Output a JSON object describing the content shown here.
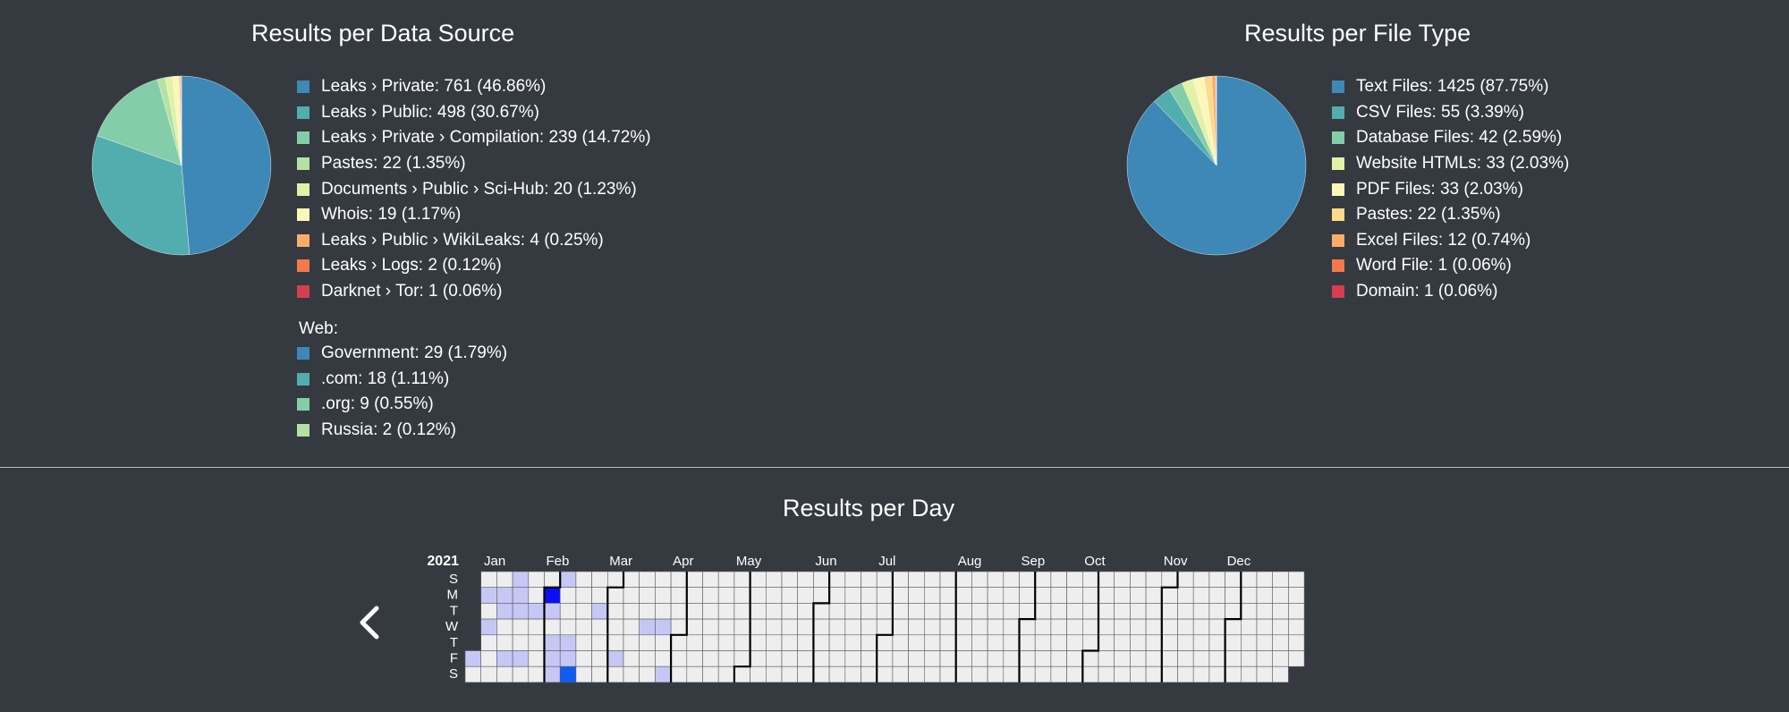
{
  "colors": {
    "background": "#343a40",
    "divider": "#b8bcc0",
    "calendar_empty": "#eeeeee",
    "calendar_light": "#c7c7f5",
    "calendar_mid": "#0e5cf0",
    "calendar_dark": "#0a0ff5"
  },
  "chart_data": [
    {
      "type": "pie",
      "title": "Results per Data Source",
      "legend_position": "right",
      "series": [
        {
          "label": "Leaks › Private",
          "value": 761,
          "percent": 46.86,
          "color": "#3e88b8",
          "legend_text": "Leaks › Private: 761 (46.86%)"
        },
        {
          "label": "Leaks › Public",
          "value": 498,
          "percent": 30.67,
          "color": "#52aeae",
          "legend_text": "Leaks › Public: 498 (30.67%)"
        },
        {
          "label": "Leaks › Private › Compilation",
          "value": 239,
          "percent": 14.72,
          "color": "#84cda9",
          "legend_text": "Leaks › Private › Compilation: 239 (14.72%)"
        },
        {
          "label": "Pastes",
          "value": 22,
          "percent": 1.35,
          "color": "#b4e2a3",
          "legend_text": "Pastes: 22 (1.35%)"
        },
        {
          "label": "Documents › Public › Sci-Hub",
          "value": 20,
          "percent": 1.23,
          "color": "#e2f1a5",
          "legend_text": "Documents › Public › Sci-Hub: 20 (1.23%)"
        },
        {
          "label": "Whois",
          "value": 19,
          "percent": 1.17,
          "color": "#fcf7b8",
          "legend_text": "Whois: 19 (1.17%)"
        },
        {
          "label": "Leaks › Public › WikiLeaks",
          "value": 4,
          "percent": 0.25,
          "color": "#fbad68",
          "legend_text": "Leaks › Public › WikiLeaks: 4 (0.25%)"
        },
        {
          "label": "Leaks › Logs",
          "value": 2,
          "percent": 0.12,
          "color": "#f3794b",
          "legend_text": "Leaks › Logs: 2 (0.12%)"
        },
        {
          "label": "Darknet › Tor",
          "value": 1,
          "percent": 0.06,
          "color": "#d53e4f",
          "legend_text": "Darknet › Tor: 1 (0.06%)"
        }
      ],
      "web_group": {
        "title": "Web:",
        "items": [
          {
            "label": "Government",
            "value": 29,
            "percent": 1.79,
            "color": "#3e88b8",
            "legend_text": "Government: 29 (1.79%)"
          },
          {
            "label": ".com",
            "value": 18,
            "percent": 1.11,
            "color": "#52aeae",
            "legend_text": ".com: 18 (1.11%)"
          },
          {
            "label": ".org",
            "value": 9,
            "percent": 0.55,
            "color": "#84cda9",
            "legend_text": ".org: 9 (0.55%)"
          },
          {
            "label": "Russia",
            "value": 2,
            "percent": 0.12,
            "color": "#b4e2a3",
            "legend_text": "Russia: 2 (0.12%)"
          }
        ]
      }
    },
    {
      "type": "pie",
      "title": "Results per File Type",
      "legend_position": "right",
      "series": [
        {
          "label": "Text Files",
          "value": 1425,
          "percent": 87.75,
          "color": "#3e88b8",
          "legend_text": "Text Files: 1425 (87.75%)"
        },
        {
          "label": "CSV Files",
          "value": 55,
          "percent": 3.39,
          "color": "#52aeae",
          "legend_text": "CSV Files: 55 (3.39%)"
        },
        {
          "label": "Database Files",
          "value": 42,
          "percent": 2.59,
          "color": "#84cda9",
          "legend_text": "Database Files: 42 (2.59%)"
        },
        {
          "label": "Website HTMLs",
          "value": 33,
          "percent": 2.03,
          "color": "#e2f1a5",
          "legend_text": "Website HTMLs: 33 (2.03%)"
        },
        {
          "label": "PDF Files",
          "value": 33,
          "percent": 2.03,
          "color": "#fcf7b8",
          "legend_text": "PDF Files: 33 (2.03%)"
        },
        {
          "label": "Pastes",
          "value": 22,
          "percent": 1.35,
          "color": "#fdd98b",
          "legend_text": "Pastes: 22 (1.35%)"
        },
        {
          "label": "Excel Files",
          "value": 12,
          "percent": 0.74,
          "color": "#fbad68",
          "legend_text": "Excel Files: 12 (0.74%)"
        },
        {
          "label": "Word File",
          "value": 1,
          "percent": 0.06,
          "color": "#f3794b",
          "legend_text": "Word File: 1 (0.06%)"
        },
        {
          "label": "Domain",
          "value": 1,
          "percent": 0.06,
          "color": "#d53e4f",
          "legend_text": "Domain: 1 (0.06%)"
        }
      ]
    },
    {
      "type": "heatmap",
      "title": "Results per Day",
      "year": "2021",
      "months": [
        "Jan",
        "Feb",
        "Mar",
        "Apr",
        "May",
        "Jun",
        "Jul",
        "Aug",
        "Sep",
        "Oct",
        "Nov",
        "Dec"
      ],
      "weekday_labels": [
        "S",
        "M",
        "T",
        "W",
        "T",
        "F",
        "S"
      ],
      "first_weekday": 5,
      "highlighted_dates": [
        {
          "date": "2021-01-01",
          "level": "light"
        },
        {
          "date": "2021-01-04",
          "level": "light"
        },
        {
          "date": "2021-01-06",
          "level": "light"
        },
        {
          "date": "2021-01-11",
          "level": "light"
        },
        {
          "date": "2021-01-12",
          "level": "light"
        },
        {
          "date": "2021-01-15",
          "level": "light"
        },
        {
          "date": "2021-01-17",
          "level": "light"
        },
        {
          "date": "2021-01-18",
          "level": "light"
        },
        {
          "date": "2021-01-19",
          "level": "light"
        },
        {
          "date": "2021-01-22",
          "level": "light"
        },
        {
          "date": "2021-01-26",
          "level": "light"
        },
        {
          "date": "2021-02-01",
          "level": "dark"
        },
        {
          "date": "2021-02-02",
          "level": "light"
        },
        {
          "date": "2021-02-04",
          "level": "light"
        },
        {
          "date": "2021-02-05",
          "level": "light"
        },
        {
          "date": "2021-02-06",
          "level": "light"
        },
        {
          "date": "2021-02-07",
          "level": "light"
        },
        {
          "date": "2021-02-11",
          "level": "light"
        },
        {
          "date": "2021-02-12",
          "level": "light"
        },
        {
          "date": "2021-02-13",
          "level": "mid"
        },
        {
          "date": "2021-02-23",
          "level": "light"
        },
        {
          "date": "2021-03-05",
          "level": "light"
        },
        {
          "date": "2021-03-17",
          "level": "light"
        },
        {
          "date": "2021-03-24",
          "level": "light"
        },
        {
          "date": "2021-03-27",
          "level": "light"
        }
      ]
    }
  ]
}
